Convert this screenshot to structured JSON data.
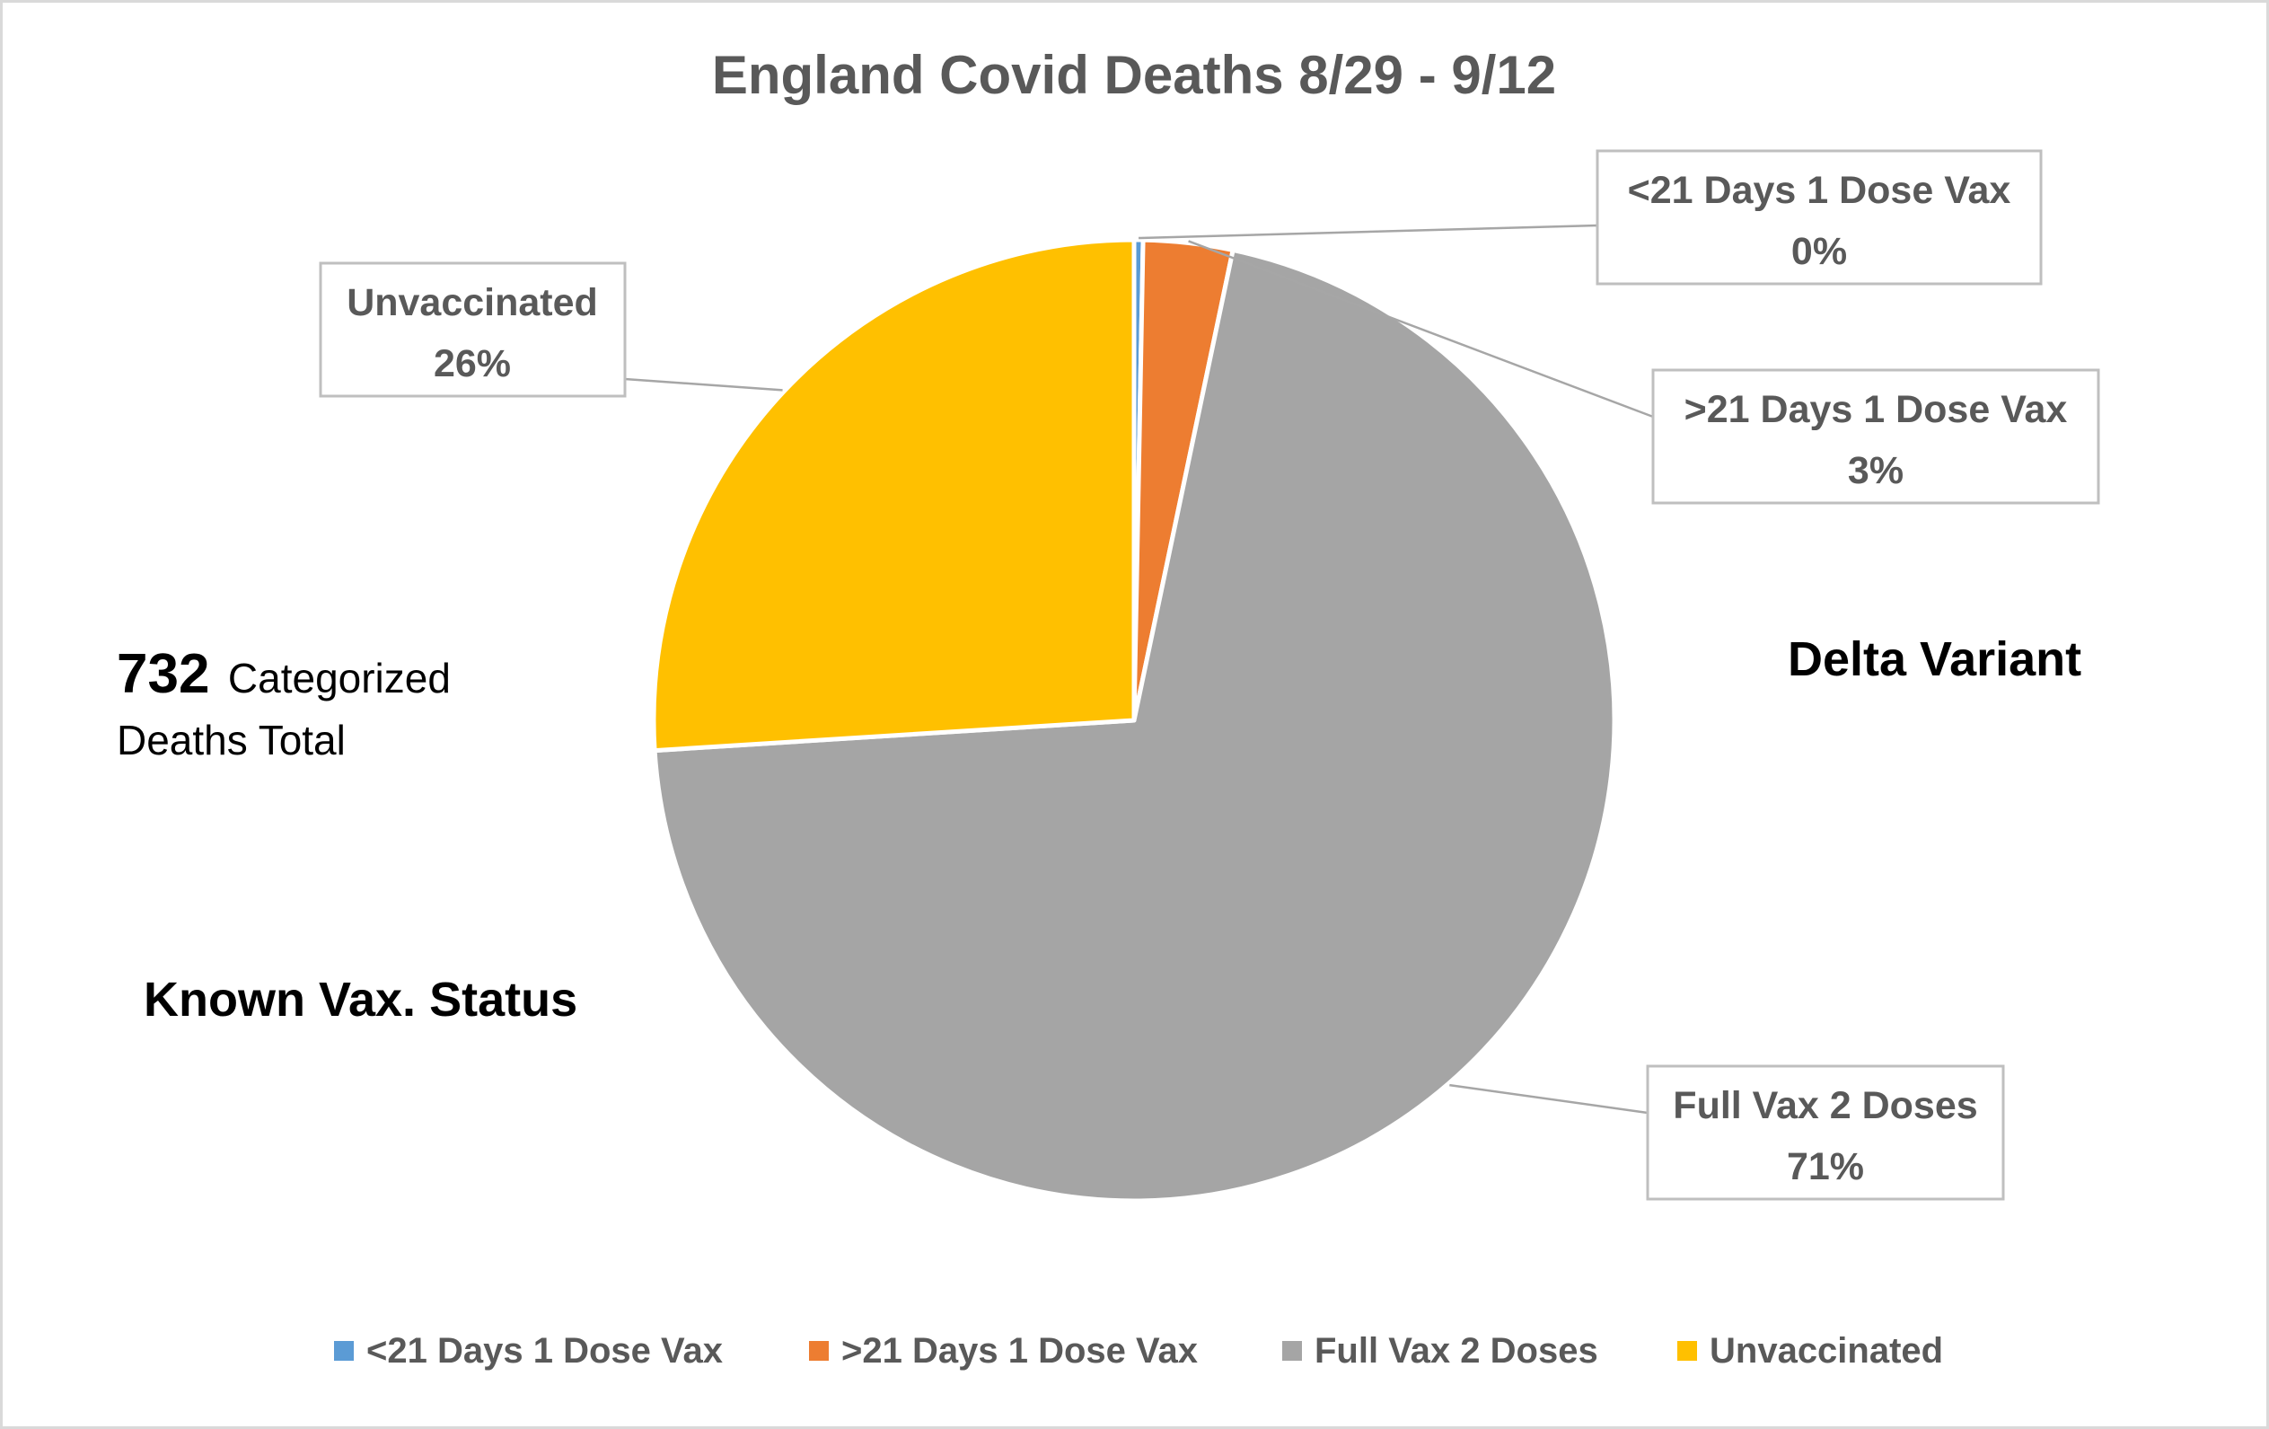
{
  "chart_data": {
    "type": "pie",
    "title": "England Covid Deaths 8/29 - 9/12",
    "categories": [
      "<21 Days 1 Dose Vax",
      ">21 Days 1 Dose Vax",
      "Full Vax 2 Doses",
      "Unvaccinated"
    ],
    "values": [
      0.3,
      3,
      70.7,
      26
    ],
    "data_labels": [
      "0%",
      "3%",
      "71%",
      "26%"
    ],
    "colors": [
      "#5b9bd5",
      "#ed7d31",
      "#a5a5a5",
      "#ffc000"
    ],
    "legend_position": "bottom",
    "annotations": {
      "total_number": "732",
      "total_word": "Categorized",
      "total_line2": "Deaths Total",
      "known_status": "Known Vax. Status",
      "variant": "Delta Variant"
    }
  }
}
